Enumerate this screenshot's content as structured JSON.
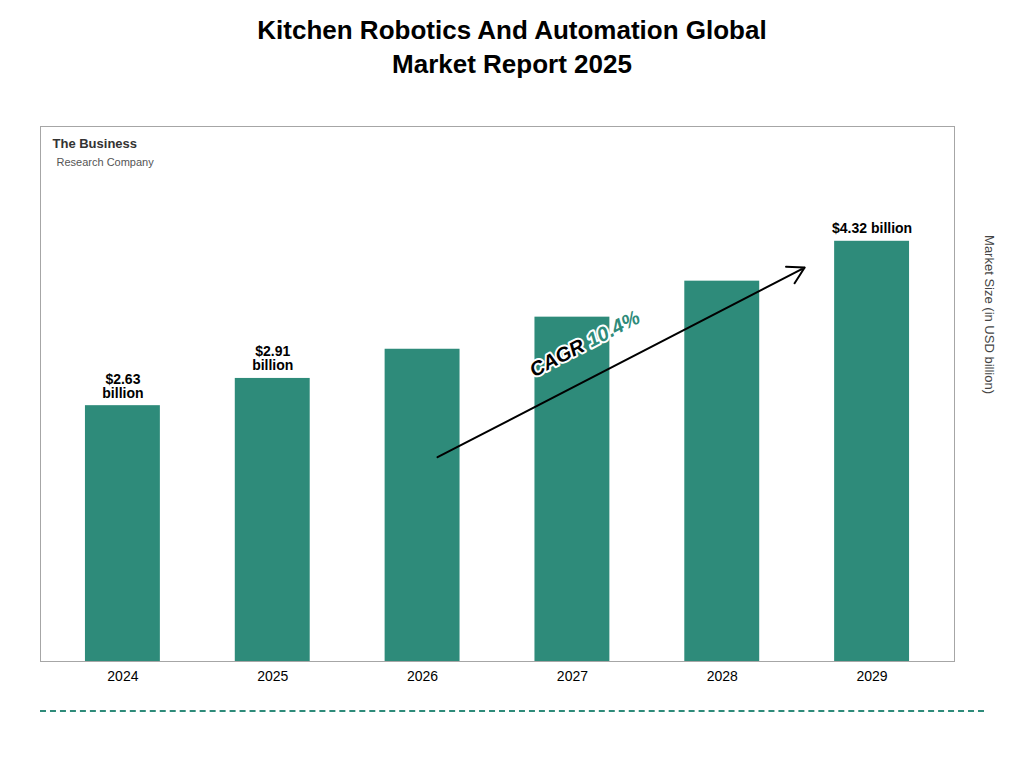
{
  "chart_data": {
    "type": "bar",
    "title": "Kitchen Robotics And Automation Global\nMarket Report 2025",
    "ylabel": "Market Size (in USD billion)",
    "categories": [
      "2024",
      "2025",
      "2026",
      "2027",
      "2028",
      "2029"
    ],
    "values": [
      2.63,
      2.91,
      3.21,
      3.54,
      3.91,
      4.32
    ],
    "value_labels": [
      "$2.63\nbillion",
      "$2.91\nbillion",
      null,
      null,
      null,
      "$4.32 billion"
    ],
    "color": "#2e8b7a",
    "ylim": [
      0,
      5.5
    ],
    "grid": false,
    "tick_labels": "x",
    "annotations": [
      "CAGR ",
      "10.4%",
      "The Business",
      "Research Company"
    ]
  }
}
